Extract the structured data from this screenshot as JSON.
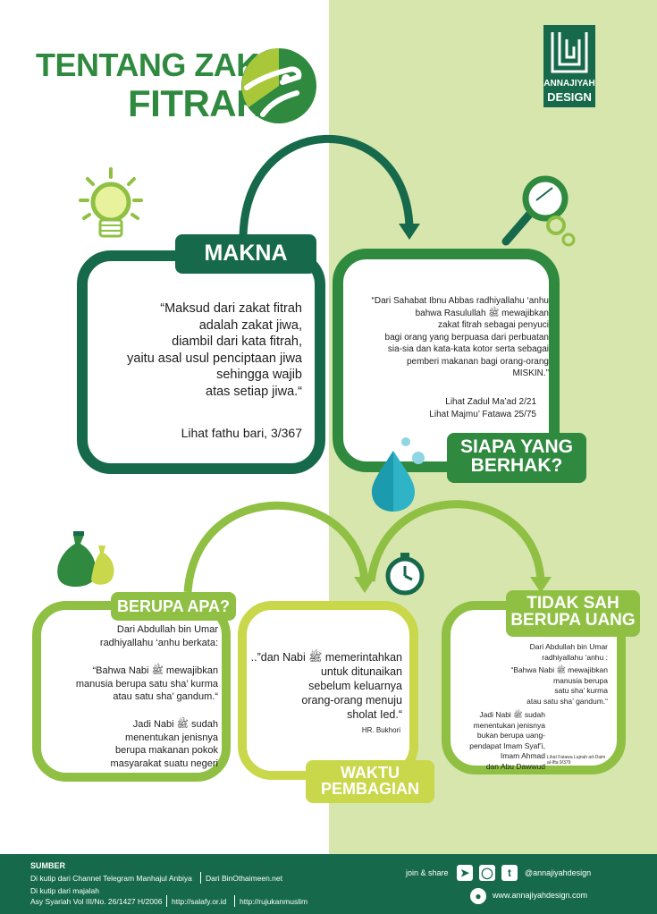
{
  "title": {
    "line1": "TENTANG ZAKAT",
    "line2": "FITRAH"
  },
  "brand": {
    "name_line1": "ANNAJIYAH",
    "name_line2": "DESIGN"
  },
  "sections": {
    "makna": {
      "label": "MAKNA",
      "quote_lines": [
        "“Maksud dari zakat fitrah",
        "adalah zakat jiwa,",
        "diambil dari kata fitrah,",
        "yaitu asal usul penciptaan jiwa",
        "sehingga wajib",
        "atas setiap jiwa.“"
      ],
      "ref": "Lihat fathu bari, 3/367"
    },
    "siapa": {
      "label_line1": "SIAPA YANG",
      "label_line2": "BERHAK?",
      "quote_lines": [
        "“Dari Sahabat Ibnu Abbas radhiyallahu ‘anhu",
        "bahwa Rasulullah ﷺ mewajibkan",
        "zakat fitrah sebagai penyuci",
        "bagi orang yang berpuasa dari perbuatan",
        "sia-sia dan kata-kata kotor serta sebagai",
        "pemberi makanan bagi orang-orang",
        "MISKIN.”"
      ],
      "ref1": "Lihat Zadul Ma’ad 2/21",
      "ref2": "Lihat Majmu’ Fatawa 25/75"
    },
    "berupa": {
      "label": "BERUPA APA?",
      "intro_lines": [
        "Dari Abdullah bin Umar",
        "radhiyallahu ‘anhu berkata:"
      ],
      "quote_lines": [
        "“Bahwa Nabi ﷺ mewajibkan",
        "manusia berupa satu sha’ kurma",
        "atau satu sha’ gandum.“"
      ],
      "note_lines": [
        "Jadi Nabi ﷺ sudah",
        "menentukan jenisnya",
        "berupa makanan pokok",
        "masyarakat suatu negeri"
      ]
    },
    "waktu": {
      "label_line1": "WAKTU",
      "label_line2": "PEMBAGIAN",
      "quote_lines": [
        "..”dan Nabi ﷺ memerintahkan",
        "untuk ditunaikan",
        "sebelum keluarnya",
        "orang-orang menuju",
        "sholat Ied.“"
      ],
      "ref": "HR. Bukhori"
    },
    "tidak": {
      "label_line1": "TIDAK SAH",
      "label_line2": "BERUPA UANG",
      "intro_lines": [
        "Dari Abdullah bin Umar",
        "radhiyallahu ‘anhu :"
      ],
      "quote_lines": [
        "“Bahwa Nabi ﷺ mewajibkan",
        "manusia berupa",
        "satu sha’ kurma",
        "atau satu sha’ gandum.“"
      ],
      "note_lines": [
        "Jadi Nabi ﷺ sudah",
        "menentukan jenisnya",
        "bukan berupa uang-",
        "pendapat Imam Syaf’i,",
        "Imam Ahmad",
        "dan Abu Dawwud"
      ],
      "small_ref_lines": [
        "Lihat Fatawa Lajnah ad-Daim",
        "al-Ifta 9/379"
      ]
    }
  },
  "footer": {
    "sumber_label": "SUMBER",
    "line1a": "Di kutip dari Channel Telegram Manhajul Anbiya",
    "line1b": "Dari BinOthaimeen.net",
    "line2": "Di kutip dari majalah",
    "line3a": "Asy Syariah Vol III/No. 26/1427 H/2006",
    "line3b": "http://salafy.or.id",
    "line3c": "http://rujukanmuslim",
    "join": "join & share",
    "handle": "@annajiyahdesign",
    "website": "www.annajiyahdesign.com"
  },
  "colors": {
    "dark": "#166a4b",
    "medium": "#2f8a3f",
    "light": "#8fc043",
    "lime": "#a8c83a",
    "bg_right": "#d6e6ad"
  }
}
